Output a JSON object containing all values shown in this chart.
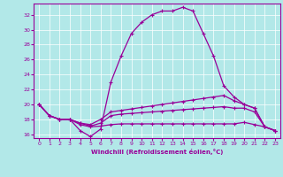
{
  "xlabel": "Windchill (Refroidissement éolien,°C)",
  "bg_color": "#b2e8e8",
  "line_color": "#990099",
  "grid_color": "#ffffff",
  "xlim": [
    -0.5,
    23.5
  ],
  "ylim": [
    15.5,
    33.5
  ],
  "xticks": [
    0,
    1,
    2,
    3,
    4,
    5,
    6,
    7,
    8,
    9,
    10,
    11,
    12,
    13,
    14,
    15,
    16,
    17,
    18,
    19,
    20,
    21,
    22,
    23
  ],
  "yticks": [
    16,
    18,
    20,
    22,
    24,
    26,
    28,
    30,
    32
  ],
  "line1_x": [
    0,
    1,
    2,
    3,
    4,
    5,
    6,
    7,
    8,
    9,
    10,
    11,
    12,
    13,
    14,
    15,
    16,
    17,
    18,
    19,
    20,
    21,
    22,
    23
  ],
  "line1_y": [
    20,
    18.5,
    18,
    18,
    16.5,
    15.7,
    16.7,
    23,
    26.5,
    29.5,
    31,
    32,
    32.5,
    32.5,
    33,
    32.5,
    29.5,
    26.5,
    22.5,
    21,
    20,
    19.5,
    17,
    16.5
  ],
  "line2_x": [
    0,
    1,
    2,
    3,
    4,
    5,
    6,
    7,
    8,
    9,
    10,
    11,
    12,
    13,
    14,
    15,
    16,
    17,
    18,
    19,
    20,
    21,
    22,
    23
  ],
  "line2_y": [
    20,
    18.5,
    18,
    18,
    17.5,
    17.3,
    18,
    19,
    19.2,
    19.4,
    19.6,
    19.8,
    20.0,
    20.2,
    20.4,
    20.6,
    20.8,
    21.0,
    21.2,
    20.5,
    20,
    19.5,
    17,
    16.5
  ],
  "line3_x": [
    0,
    1,
    2,
    3,
    4,
    5,
    6,
    7,
    8,
    9,
    10,
    11,
    12,
    13,
    14,
    15,
    16,
    17,
    18,
    19,
    20,
    21,
    22,
    23
  ],
  "line3_y": [
    20,
    18.5,
    18,
    18,
    17.5,
    17.1,
    17.5,
    18.5,
    18.7,
    18.8,
    18.9,
    19.0,
    19.1,
    19.2,
    19.3,
    19.4,
    19.5,
    19.6,
    19.7,
    19.5,
    19.5,
    19.0,
    17,
    16.5
  ],
  "line4_x": [
    0,
    1,
    2,
    3,
    4,
    5,
    6,
    7,
    8,
    9,
    10,
    11,
    12,
    13,
    14,
    15,
    16,
    17,
    18,
    19,
    20,
    21,
    22,
    23
  ],
  "line4_y": [
    20,
    18.5,
    18,
    18,
    17.3,
    17.0,
    17.1,
    17.3,
    17.4,
    17.4,
    17.4,
    17.4,
    17.4,
    17.4,
    17.4,
    17.4,
    17.4,
    17.4,
    17.4,
    17.4,
    17.6,
    17.3,
    17.0,
    16.5
  ]
}
